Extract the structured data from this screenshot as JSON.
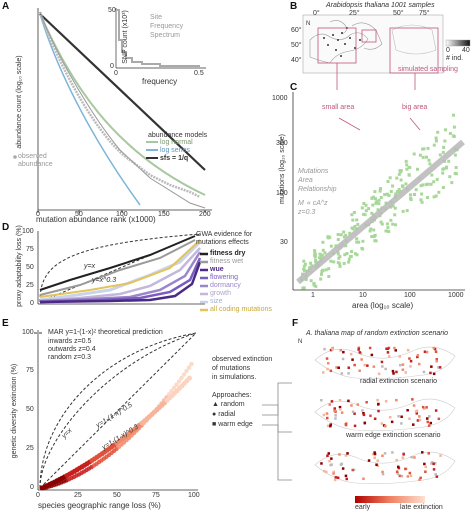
{
  "panel_A": {
    "letter": "A",
    "ylabel": "abundance count (log₁₀ scale)",
    "xlabel": "mutation abundance rank (x1000)",
    "xticks": [
      "0",
      "50",
      "100",
      "150",
      "200"
    ],
    "legend_title": "abundance models",
    "legend_items": [
      "log normal",
      "log series",
      "sfs = 1/q"
    ],
    "observed_label": "observed abundance",
    "inset": {
      "ylabel": "SNP count (x10³)",
      "xlabel": "frequency",
      "xticks": [
        "0",
        "0.5"
      ],
      "yticks": [
        "0",
        "50"
      ],
      "title_lines": [
        "Site",
        "Frequency",
        "Spectrum"
      ]
    }
  },
  "panel_B": {
    "letter": "B",
    "title": "Arabidopsis thaliana 1001 samples",
    "lon_ticks": [
      "0°",
      "25°",
      "50°",
      "75°"
    ],
    "lat_ticks": [
      "60°",
      "50°",
      "40°"
    ],
    "colorbar_ticks": [
      "0",
      "40"
    ],
    "colorbar_label": "# ind.",
    "simulated_label": "simulated sampling",
    "north": "N"
  },
  "panel_C": {
    "letter": "C",
    "ylabel": "mutations (log₁₀ scale)",
    "xlabel": "area (log₁₀ scale)",
    "xticks": [
      "1",
      "10",
      "100",
      "1000"
    ],
    "yticks": [
      "30",
      "100",
      "300",
      "1000"
    ],
    "small_area": "small area",
    "big_area": "big area",
    "mar_text": [
      "Mutations",
      "Area",
      "Relationship"
    ],
    "mar_eq": "M ∝ cA^z",
    "mar_z": "z=0.3"
  },
  "panel_D": {
    "letter": "D",
    "ylabel": "proxy adaptability loss (%)",
    "yticks": [
      "0",
      "25",
      "50",
      "75",
      "100"
    ],
    "legend_title": [
      "GWA evidence for",
      "mutations effects"
    ],
    "curve_labels": [
      "y=x",
      "y=x^0.3"
    ],
    "legend_items": [
      {
        "label": "fitness dry",
        "color": "#222222"
      },
      {
        "label": "fitness wet",
        "color": "#9a9a9a"
      },
      {
        "label": "wue",
        "color": "#4b2a84"
      },
      {
        "label": "flowering",
        "color": "#7a5cc2"
      },
      {
        "label": "dormancy",
        "color": "#9a86c9"
      },
      {
        "label": "growth",
        "color": "#c3b7de"
      },
      {
        "label": "size",
        "color": "#c9d4ea"
      },
      {
        "label": "all coding mutations",
        "color": "#e2c45a"
      }
    ]
  },
  "panel_E": {
    "letter": "E",
    "ylabel": "genetic diversity extinction (%)",
    "xlabel": "species geographic range loss (%)",
    "xticks": [
      "0",
      "25",
      "50",
      "75",
      "100"
    ],
    "yticks": [
      "0",
      "25",
      "50",
      "75",
      "100"
    ],
    "legend_line": "MAR  y=1-(1-x)ᶻ theoretical prediction",
    "legend_rows": [
      "inwards  z=0.5",
      "outwards z=0.4",
      "random  z=0.3"
    ],
    "curve_labels": [
      "y=x",
      "y=1-(1-x)^0.5",
      "y=1-(1-x)^0.3"
    ]
  },
  "panel_text_mid": {
    "observed": [
      "observed extinction",
      "of mutations",
      "in simulations."
    ],
    "approaches_title": "Approaches:",
    "approaches": [
      {
        "symbol": "▲",
        "label": "random"
      },
      {
        "symbol": "●",
        "label": "radial"
      },
      {
        "symbol": "■",
        "label": "warm edge"
      }
    ]
  },
  "panel_F": {
    "letter": "F",
    "title": "A. thaliana map of random extinction scenario",
    "radial": "radial extinction scenario",
    "warm": "warm edge extinction scenario",
    "colorbar_left": "early",
    "colorbar_right": "late extinction",
    "north": "N"
  }
}
